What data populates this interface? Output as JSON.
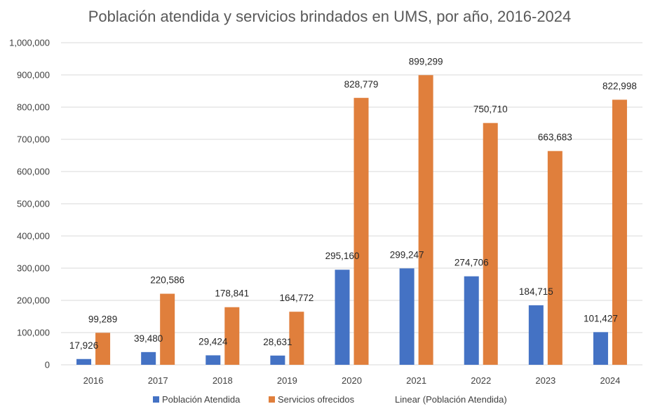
{
  "chart_data": {
    "type": "bar",
    "title": "Población atendida y servicios brindados en UMS, por año, 2016-2024",
    "xlabel": "",
    "ylabel": "",
    "categories": [
      "2016",
      "2017",
      "2018",
      "2019",
      "2020",
      "2021",
      "2022",
      "2023",
      "2024"
    ],
    "series": [
      {
        "name": "Población Atendida",
        "color": "#4472c4",
        "values": [
          17926,
          39480,
          29424,
          28631,
          295160,
          299247,
          274706,
          184715,
          101427
        ],
        "labels": [
          "17,926",
          "39,480",
          "29,424",
          "28,631",
          "295,160",
          "299,247",
          "274,706",
          "184,715",
          "101,427"
        ]
      },
      {
        "name": "Servicios ofrecidos",
        "color": "#e07f3c",
        "values": [
          99289,
          220586,
          178841,
          164772,
          828779,
          899299,
          750710,
          663683,
          822998
        ],
        "labels": [
          "99,289",
          "220,586",
          "178,841",
          "164,772",
          "828,779",
          "899,299",
          "750,710",
          "663,683",
          "822,998"
        ]
      }
    ],
    "ylim": [
      0,
      1000000
    ],
    "yticks": [
      0,
      100000,
      200000,
      300000,
      400000,
      500000,
      600000,
      700000,
      800000,
      900000,
      1000000
    ],
    "ytick_labels": [
      "0",
      "100,000",
      "200,000",
      "300,000",
      "400,000",
      "500,000",
      "600,000",
      "700,000",
      "800,000",
      "900,000",
      "1,000,000"
    ],
    "grid": true,
    "legend": {
      "position": "bottom",
      "entries": [
        "Población Atendida",
        "Servicios ofrecidos",
        "Linear (Población Atendida)"
      ]
    }
  }
}
